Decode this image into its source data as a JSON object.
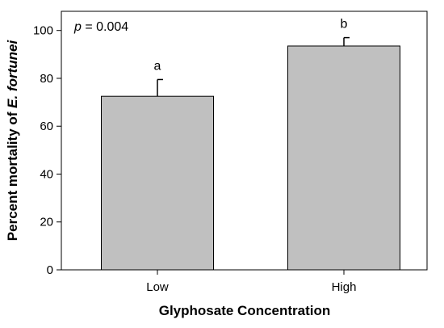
{
  "chart_data": {
    "type": "bar",
    "title": "",
    "categories": [
      "Low",
      "High"
    ],
    "values": [
      72.5,
      93.5
    ],
    "errors": [
      7,
      3.5
    ],
    "group_letters": [
      "a",
      "b"
    ],
    "annotation": {
      "p_label": "p",
      "p_value": " = 0.004"
    },
    "xlabel": "Glyphosate Concentration",
    "ylabel": {
      "prefix": "Percent mortality of ",
      "species": "E. fortunei"
    },
    "ylim": [
      0,
      108
    ],
    "yticks": [
      0,
      20,
      40,
      60,
      80,
      100
    ],
    "bar_color": "#c0c0c0",
    "grid": false,
    "legend": "none"
  }
}
